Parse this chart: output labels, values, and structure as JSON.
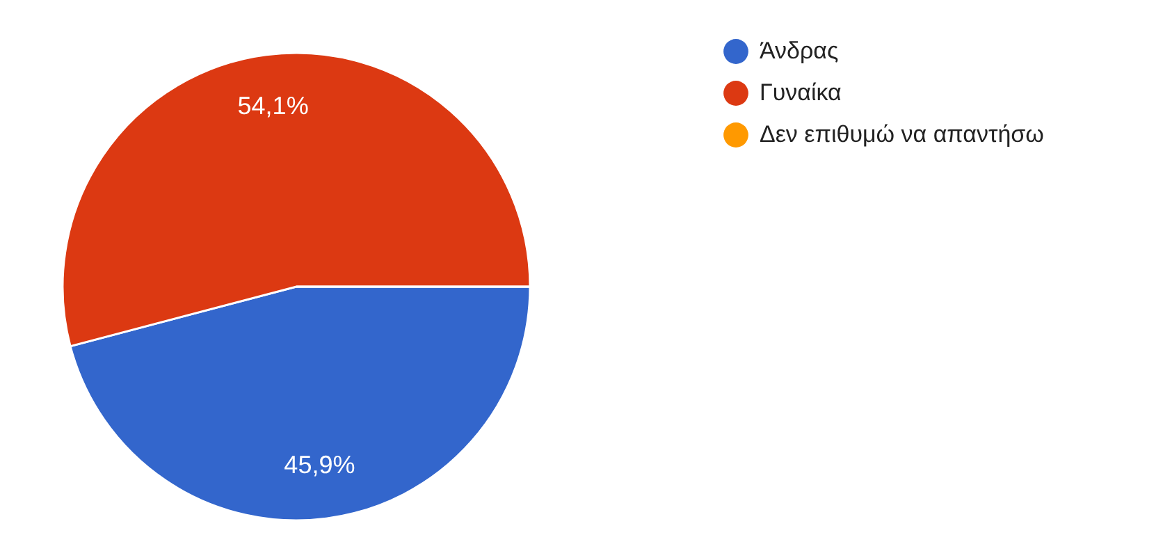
{
  "chart_data": {
    "type": "pie",
    "categories": [
      "Άνδρας",
      "Γυναίκα",
      "Δεν επιθυμώ να απαντήσω"
    ],
    "values": [
      45.9,
      54.1,
      0
    ],
    "colors": [
      "#3366cc",
      "#dc3912",
      "#ff9900"
    ],
    "value_labels": [
      "45,9%",
      "54,1%",
      null
    ],
    "legend": "top right"
  }
}
